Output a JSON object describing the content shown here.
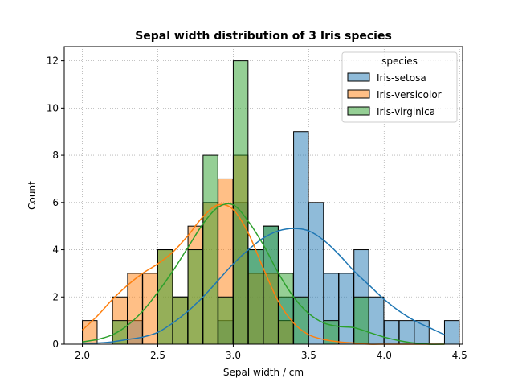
{
  "chart_data": {
    "type": "bar",
    "title": "Sepal width distribution of 3 Iris species",
    "xlabel": "Sepal width / cm",
    "ylabel": "Count",
    "xlim": [
      1.88,
      4.52
    ],
    "ylim": [
      0,
      12.6
    ],
    "xticks": [
      2.0,
      2.5,
      3.0,
      3.5,
      4.0,
      4.5
    ],
    "xtick_labels": [
      "2.0",
      "2.5",
      "3.0",
      "3.5",
      "4.0",
      "4.5"
    ],
    "yticks": [
      0,
      2,
      4,
      6,
      8,
      10,
      12
    ],
    "ytick_labels": [
      "0",
      "2",
      "4",
      "6",
      "8",
      "10",
      "12"
    ],
    "grid": true,
    "legend": {
      "title": "species",
      "placement": "top-right"
    },
    "bin_edges": [
      2.0,
      2.1,
      2.2,
      2.3,
      2.4,
      2.5,
      2.6,
      2.7,
      2.8,
      2.9,
      3.0,
      3.1,
      3.2,
      3.3,
      3.4,
      3.5,
      3.6,
      3.7,
      3.8,
      3.9,
      4.0,
      4.1,
      4.2,
      4.3,
      4.4
    ],
    "series": [
      {
        "name": "Iris-setosa",
        "color": "#1f77b4",
        "counts": [
          0,
          0,
          0,
          1,
          0,
          0,
          0,
          0,
          0,
          1,
          6,
          4,
          5,
          2,
          9,
          6,
          3,
          3,
          4,
          2,
          1,
          1,
          1,
          0,
          1
        ],
        "kde_y": [
          0.05,
          0.05,
          0.1,
          0.2,
          0.3,
          0.5,
          0.9,
          1.4,
          2.0,
          2.7,
          3.4,
          4.0,
          4.5,
          4.8,
          4.9,
          4.8,
          4.4,
          3.8,
          3.1,
          2.5,
          1.9,
          1.4,
          1.0,
          0.7,
          0.4
        ]
      },
      {
        "name": "Iris-versicolor",
        "color": "#ff7f0e",
        "counts": [
          1,
          0,
          2,
          3,
          3,
          4,
          2,
          5,
          6,
          7,
          8,
          3,
          3,
          1,
          0,
          0,
          0,
          0,
          0,
          0,
          0,
          0,
          0,
          0,
          0
        ],
        "kde_y": [
          0.6,
          1.2,
          1.9,
          2.5,
          3.0,
          3.4,
          3.9,
          4.6,
          5.4,
          5.9,
          5.7,
          4.7,
          3.2,
          1.8,
          0.9,
          0.4,
          0.2,
          0.1,
          0.05,
          0,
          0,
          0,
          0,
          0,
          0
        ]
      },
      {
        "name": "Iris-virginica",
        "color": "#2ca02c",
        "counts": [
          0,
          0,
          1,
          0,
          0,
          4,
          2,
          4,
          8,
          2,
          12,
          4,
          5,
          3,
          2,
          0,
          1,
          0,
          2,
          0,
          0,
          0,
          0,
          0,
          0
        ],
        "kde_y": [
          0.1,
          0.2,
          0.4,
          0.8,
          1.4,
          2.2,
          3.1,
          4.1,
          5.1,
          5.8,
          5.9,
          5.2,
          4.2,
          3.0,
          2.0,
          1.3,
          0.9,
          0.75,
          0.7,
          0.5,
          0.3,
          0.15,
          0.05,
          0,
          0
        ]
      }
    ]
  }
}
